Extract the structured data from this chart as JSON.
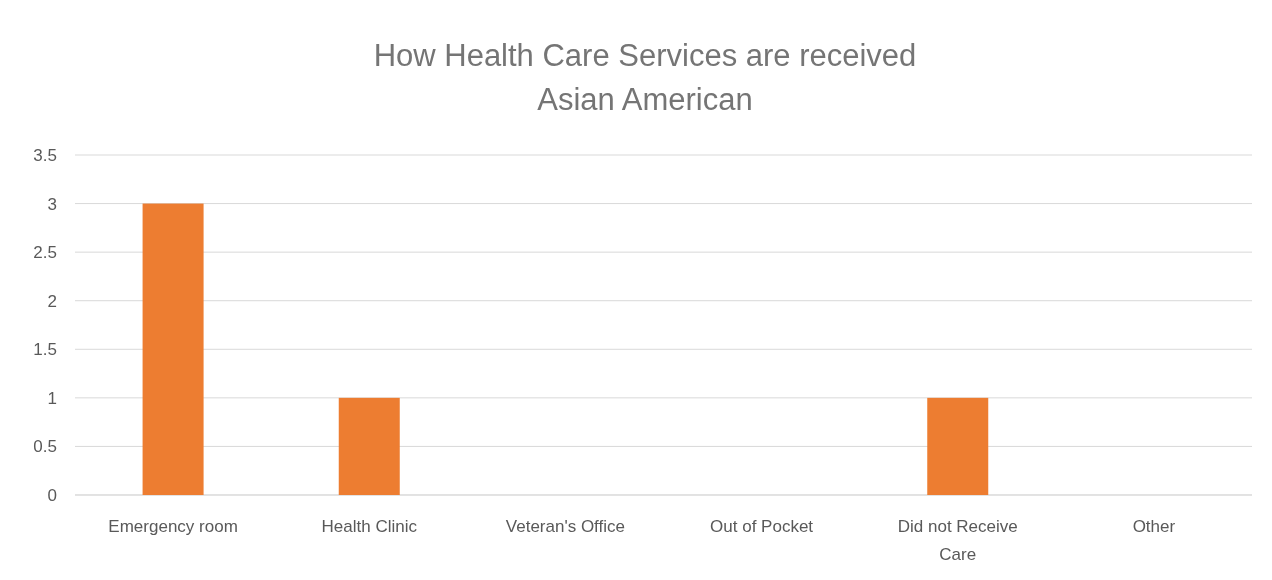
{
  "chart_data": {
    "type": "bar",
    "title": "How Health Care Services are received",
    "subtitle": "Asian American",
    "categories": [
      "Emergency room",
      "Health Clinic",
      "Veteran's Office",
      "Out of Pocket",
      "Did not Receive Care",
      "Other"
    ],
    "values": [
      3,
      1,
      0,
      0,
      1,
      0
    ],
    "color": "#ed7d31",
    "ylim": [
      0,
      3.5
    ],
    "yticks": [
      0,
      0.5,
      1,
      1.5,
      2,
      2.5,
      3,
      3.5
    ],
    "grid": "y"
  }
}
